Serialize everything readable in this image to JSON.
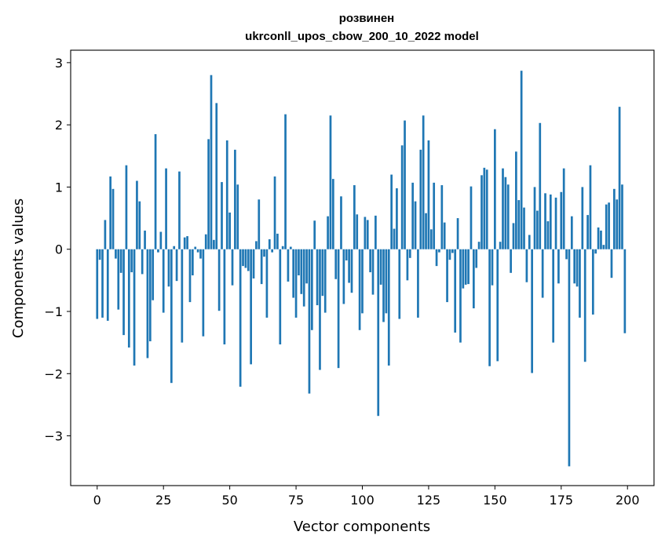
{
  "chart_data": {
    "type": "bar",
    "title": "розвинен",
    "subtitle": "ukrconll_upos_cbow_200_10_2022 model",
    "xlabel": "Vector components",
    "ylabel": "Components values",
    "xlim": [
      -10,
      210
    ],
    "ylim": [
      -3.8,
      3.2
    ],
    "xticks": [
      0,
      25,
      50,
      75,
      100,
      125,
      150,
      175,
      200
    ],
    "yticks": [
      -3,
      -2,
      -1,
      0,
      1,
      2,
      3
    ],
    "xtick_labels": [
      "0",
      "25",
      "50",
      "75",
      "100",
      "125",
      "150",
      "175",
      "200"
    ],
    "ytick_labels": [
      "−3",
      "−2",
      "−1",
      "0",
      "1",
      "2",
      "3"
    ],
    "grid": false,
    "bar_color": "#1f77b4",
    "x": [
      0,
      1,
      2,
      3,
      4,
      5,
      6,
      7,
      8,
      9,
      10,
      11,
      12,
      13,
      14,
      15,
      16,
      17,
      18,
      19,
      20,
      21,
      22,
      23,
      24,
      25,
      26,
      27,
      28,
      29,
      30,
      31,
      32,
      33,
      34,
      35,
      36,
      37,
      38,
      39,
      40,
      41,
      42,
      43,
      44,
      45,
      46,
      47,
      48,
      49,
      50,
      51,
      52,
      53,
      54,
      55,
      56,
      57,
      58,
      59,
      60,
      61,
      62,
      63,
      64,
      65,
      66,
      67,
      68,
      69,
      70,
      71,
      72,
      73,
      74,
      75,
      76,
      77,
      78,
      79,
      80,
      81,
      82,
      83,
      84,
      85,
      86,
      87,
      88,
      89,
      90,
      91,
      92,
      93,
      94,
      95,
      96,
      97,
      98,
      99,
      100,
      101,
      102,
      103,
      104,
      105,
      106,
      107,
      108,
      109,
      110,
      111,
      112,
      113,
      114,
      115,
      116,
      117,
      118,
      119,
      120,
      121,
      122,
      123,
      124,
      125,
      126,
      127,
      128,
      129,
      130,
      131,
      132,
      133,
      134,
      135,
      136,
      137,
      138,
      139,
      140,
      141,
      142,
      143,
      144,
      145,
      146,
      147,
      148,
      149,
      150,
      151,
      152,
      153,
      154,
      155,
      156,
      157,
      158,
      159,
      160,
      161,
      162,
      163,
      164,
      165,
      166,
      167,
      168,
      169,
      170,
      171,
      172,
      173,
      174,
      175,
      176,
      177,
      178,
      179,
      180,
      181,
      182,
      183,
      184,
      185,
      186,
      187,
      188,
      189,
      190,
      191,
      192,
      193,
      194,
      195,
      196,
      197,
      198,
      199
    ],
    "values": [
      -1.12,
      -0.17,
      -1.1,
      0.47,
      -1.15,
      1.17,
      0.97,
      -0.15,
      -0.97,
      -0.38,
      -1.38,
      1.35,
      -1.58,
      -0.37,
      -1.87,
      1.1,
      0.77,
      -0.4,
      0.3,
      -1.75,
      -1.48,
      -0.82,
      1.85,
      -0.05,
      0.28,
      -1.02,
      1.3,
      -0.6,
      -2.15,
      0.05,
      -0.51,
      1.25,
      -1.5,
      0.19,
      0.21,
      -0.85,
      -0.42,
      0.04,
      -0.05,
      -0.15,
      -1.4,
      0.24,
      1.77,
      2.8,
      0.15,
      2.35,
      -0.99,
      1.08,
      -1.53,
      1.75,
      0.59,
      -0.58,
      1.6,
      1.04,
      -2.21,
      -0.27,
      -0.3,
      -0.35,
      -1.85,
      -0.47,
      0.13,
      0.8,
      -0.56,
      -0.12,
      -1.1,
      0.16,
      -0.05,
      1.17,
      0.25,
      -1.53,
      0.05,
      2.17,
      -0.52,
      0.04,
      -0.78,
      -1.1,
      -0.42,
      -0.72,
      -0.92,
      -0.55,
      -2.32,
      -1.3,
      0.46,
      -0.9,
      -1.94,
      -0.75,
      -1.02,
      0.53,
      2.15,
      1.13,
      -0.48,
      -1.91,
      0.85,
      -0.88,
      -0.18,
      -0.54,
      -0.7,
      1.03,
      0.56,
      -1.3,
      -1.03,
      0.52,
      0.47,
      -0.37,
      -0.73,
      0.54,
      -2.68,
      -0.57,
      -1.17,
      -1.03,
      -1.87,
      1.2,
      0.33,
      0.98,
      -1.12,
      1.67,
      2.07,
      -0.5,
      -0.14,
      1.07,
      0.77,
      -1.1,
      1.6,
      2.15,
      0.58,
      1.75,
      0.32,
      1.07,
      -0.27,
      -0.05,
      1.03,
      0.43,
      -0.85,
      -0.17,
      -0.06,
      -1.34,
      0.5,
      -1.5,
      -0.63,
      -0.57,
      -0.56,
      1.01,
      -0.95,
      -0.3,
      0.12,
      1.19,
      1.31,
      1.28,
      -1.88,
      -0.58,
      1.93,
      -1.8,
      0.12,
      1.3,
      1.16,
      1.04,
      -0.38,
      0.42,
      1.57,
      0.79,
      2.87,
      0.67,
      -0.53,
      0.23,
      -1.99,
      1.0,
      0.62,
      2.03,
      -0.78,
      0.9,
      0.45,
      0.88,
      -1.5,
      0.83,
      -0.55,
      0.92,
      1.3,
      -0.16,
      -3.49,
      0.53,
      -0.55,
      -0.6,
      -1.1,
      1.0,
      -1.81,
      0.55,
      1.35,
      -1.05,
      -0.07,
      0.35,
      0.3,
      0.07,
      0.72,
      0.75,
      -0.46,
      0.97,
      0.8,
      2.29,
      1.04,
      -1.35
    ]
  }
}
